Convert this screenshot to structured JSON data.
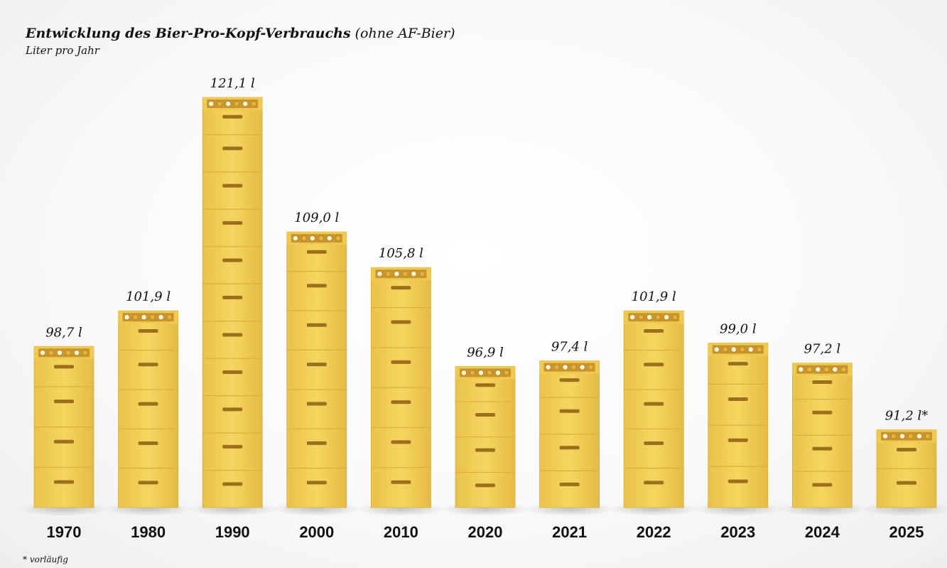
{
  "chart_data": {
    "type": "bar",
    "title": "Entwicklung des Bier-Pro-Kopf-Verbrauchs",
    "title_note": "(ohne AF-Bier)",
    "subtitle": "Liter pro Jahr",
    "categories": [
      "1970",
      "1980",
      "1990",
      "2000",
      "2010",
      "2020",
      "2021",
      "2022",
      "2023",
      "2024",
      "2025"
    ],
    "values": [
      98.7,
      101.9,
      121.1,
      109.0,
      105.8,
      96.9,
      97.4,
      101.9,
      99.0,
      97.2,
      91.2
    ],
    "data_labels": [
      "98,7 l",
      "101,9 l",
      "121,1 l",
      "109,0 l",
      "105,8 l",
      "96,9 l",
      "97,4 l",
      "101,9 l",
      "99,0 l",
      "97,2 l",
      "91,2 l*"
    ],
    "ylim": [
      84.2,
      121.1
    ],
    "bar_style": "stacked-beer-crates",
    "bar_color": "#f3d15a",
    "footnote": "* vorläufig"
  }
}
